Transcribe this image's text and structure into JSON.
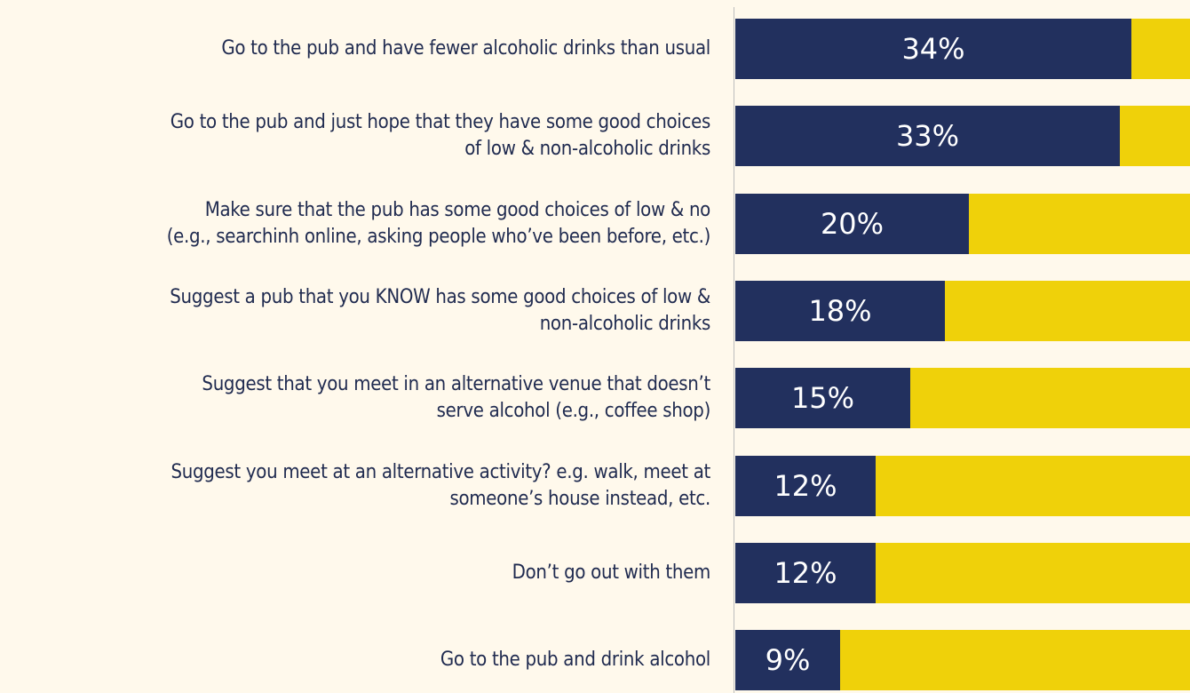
{
  "colors": {
    "background": "#fff9ec",
    "primary_bar": "#22305e",
    "secondary_bar": "#efd10a",
    "text": "#1f2a4f"
  },
  "chart_data": {
    "type": "bar",
    "orientation": "horizontal",
    "stacked": true,
    "xlim": [
      0,
      39
    ],
    "grid": false,
    "categories": [
      "Go to the pub and have fewer alcoholic drinks than usual",
      "Go to the pub and just hope that they have some good choices\nof low & non-alcoholic drinks",
      "Make sure that the pub has some good choices of low & no\n(e.g., searchinh online, asking people who’ve been before, etc.)",
      "Suggest a pub that you KNOW has some good choices of low &\nnon-alcoholic drinks",
      "Suggest that you meet in an alternative venue that doesn’t\nserve alcohol (e.g., coffee shop)",
      "Suggest you meet at an alternative activity? e.g. walk, meet at\nsomeone’s house instead, etc.",
      "Don’t go out with them",
      "Go to the pub and drink alcohol"
    ],
    "values": [
      34,
      33,
      20,
      18,
      15,
      12,
      12,
      9
    ],
    "value_labels": [
      "34%",
      "33%",
      "20%",
      "18%",
      "15%",
      "12%",
      "12%",
      "9%"
    ]
  }
}
